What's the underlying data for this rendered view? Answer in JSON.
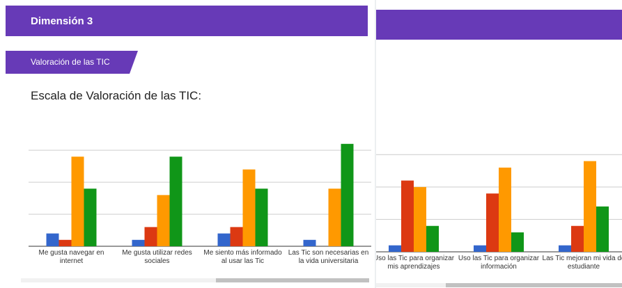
{
  "header": {
    "title": "Dimensión 3",
    "section": "Valoración de las TIC"
  },
  "chart_data": [
    {
      "type": "bar",
      "title": "Escala de Valoración de las TIC:",
      "categories": [
        "Me gusta navegar en internet",
        "Me gusta utilizar redes sociales",
        "Me siento más informado al usar las Tic",
        "Las Tic son necesarias en la vida universitaria"
      ],
      "series": [
        {
          "color": "#3366cc",
          "values": [
            2,
            1,
            2,
            1
          ]
        },
        {
          "color": "#dc3912",
          "values": [
            1,
            3,
            3,
            0
          ]
        },
        {
          "color": "#ff9900",
          "values": [
            14,
            8,
            12,
            9
          ]
        },
        {
          "color": "#109618",
          "values": [
            9,
            14,
            9,
            16
          ]
        }
      ],
      "ylim": [
        0,
        17.5
      ],
      "yticks": [
        0,
        5,
        10,
        15
      ],
      "grid": true
    },
    {
      "type": "bar",
      "categories": [
        "Uso las Tic para organizar mis aprendizajes",
        "Uso las Tic para organizar información",
        "Las Tic mejoran mi vida de estudiante"
      ],
      "series": [
        {
          "color": "#3366cc",
          "values": [
            1,
            1,
            1
          ]
        },
        {
          "color": "#dc3912",
          "values": [
            11,
            9,
            4
          ]
        },
        {
          "color": "#ff9900",
          "values": [
            10,
            13,
            14
          ]
        },
        {
          "color": "#109618",
          "values": [
            4,
            3,
            7
          ]
        }
      ],
      "ylim": [
        0,
        17.5
      ],
      "yticks": [
        0,
        5,
        10,
        15
      ],
      "grid": true
    }
  ]
}
